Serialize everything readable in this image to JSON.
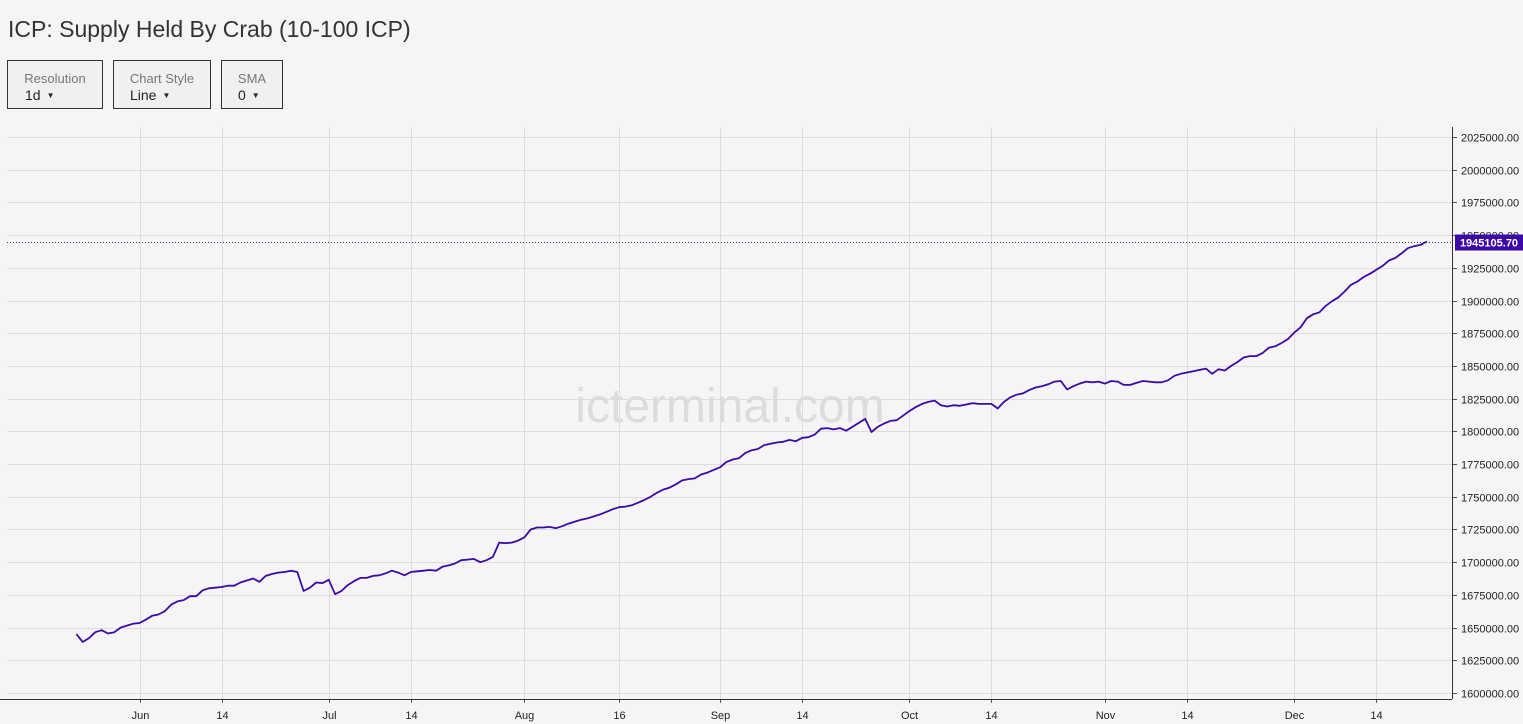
{
  "title": "ICP: Supply Held By Crab (10-100 ICP)",
  "controls": {
    "resolution": {
      "label": "Resolution",
      "value": "1d"
    },
    "chart_style": {
      "label": "Chart Style",
      "value": "Line"
    },
    "sma": {
      "label": "SMA",
      "value": "0"
    }
  },
  "watermark": "icterminal.com",
  "colors": {
    "line": "#3d08a8",
    "price_tag_bg": "#3d08a8",
    "grid": "#dddddd",
    "background": "#f5f5f5"
  },
  "chart_data": {
    "type": "line",
    "title": "ICP: Supply Held By Crab (10-100 ICP)",
    "xlabel": "",
    "ylabel": "",
    "ylim": [
      1595000,
      2030000
    ],
    "y_ticks": [
      1600000,
      1625000,
      1650000,
      1675000,
      1700000,
      1725000,
      1750000,
      1775000,
      1800000,
      1825000,
      1850000,
      1875000,
      1900000,
      1925000,
      1950000,
      1975000,
      2000000,
      2025000
    ],
    "y_tick_labels": [
      "1600000.00",
      "1625000.00",
      "1650000.00",
      "1675000.00",
      "1700000.00",
      "1725000.00",
      "1750000.00",
      "1775000.00",
      "1800000.00",
      "1825000.00",
      "1850000.00",
      "1875000.00",
      "1900000.00",
      "1925000.00",
      "1950000.00",
      "1975000.00",
      "2000000.00",
      "2025000.00"
    ],
    "x_start": "2023-05-11",
    "x_end": "2023-12-26",
    "x_ticks": [
      {
        "date": "2023-06-01",
        "label": "Jun"
      },
      {
        "date": "2023-06-14",
        "label": "14"
      },
      {
        "date": "2023-07-01",
        "label": "Jul"
      },
      {
        "date": "2023-07-14",
        "label": "14"
      },
      {
        "date": "2023-08-01",
        "label": "Aug"
      },
      {
        "date": "2023-08-16",
        "label": "16"
      },
      {
        "date": "2023-09-01",
        "label": "Sep"
      },
      {
        "date": "2023-09-14",
        "label": "14"
      },
      {
        "date": "2023-10-01",
        "label": "Oct"
      },
      {
        "date": "2023-10-14",
        "label": "14"
      },
      {
        "date": "2023-11-01",
        "label": "Nov"
      },
      {
        "date": "2023-11-14",
        "label": "14"
      },
      {
        "date": "2023-12-01",
        "label": "Dec"
      },
      {
        "date": "2023-12-14",
        "label": "14"
      }
    ],
    "grid": true,
    "last_value_label": "1945105.70",
    "series": [
      {
        "points": [
          [
            "2023-05-22",
            1645000
          ],
          [
            "2023-05-23",
            1639000
          ],
          [
            "2023-05-24",
            1642000
          ],
          [
            "2023-05-25",
            1646500
          ],
          [
            "2023-05-26",
            1648000
          ],
          [
            "2023-05-27",
            1645500
          ],
          [
            "2023-05-28",
            1646500
          ],
          [
            "2023-05-29",
            1650000
          ],
          [
            "2023-05-30",
            1651500
          ],
          [
            "2023-05-31",
            1653000
          ],
          [
            "2023-06-01",
            1653500
          ],
          [
            "2023-06-02",
            1656000
          ],
          [
            "2023-06-03",
            1659000
          ],
          [
            "2023-06-04",
            1660000
          ],
          [
            "2023-06-05",
            1662500
          ],
          [
            "2023-06-06",
            1667500
          ],
          [
            "2023-06-07",
            1670000
          ],
          [
            "2023-06-08",
            1671000
          ],
          [
            "2023-06-09",
            1674000
          ],
          [
            "2023-06-10",
            1674000
          ],
          [
            "2023-06-11",
            1678500
          ],
          [
            "2023-06-12",
            1680000
          ],
          [
            "2023-06-13",
            1680500
          ],
          [
            "2023-06-14",
            1681000
          ],
          [
            "2023-06-15",
            1682000
          ],
          [
            "2023-06-16",
            1682000
          ],
          [
            "2023-06-17",
            1684500
          ],
          [
            "2023-06-18",
            1686000
          ],
          [
            "2023-06-19",
            1687500
          ],
          [
            "2023-06-20",
            1685000
          ],
          [
            "2023-06-21",
            1689500
          ],
          [
            "2023-06-22",
            1691000
          ],
          [
            "2023-06-23",
            1692000
          ],
          [
            "2023-06-24",
            1692500
          ],
          [
            "2023-06-25",
            1693500
          ],
          [
            "2023-06-26",
            1692500
          ],
          [
            "2023-06-27",
            1678000
          ],
          [
            "2023-06-28",
            1680500
          ],
          [
            "2023-06-29",
            1684500
          ],
          [
            "2023-06-30",
            1684000
          ],
          [
            "2023-07-01",
            1686500
          ],
          [
            "2023-07-02",
            1675500
          ],
          [
            "2023-07-03",
            1678000
          ],
          [
            "2023-07-04",
            1682500
          ],
          [
            "2023-07-05",
            1685500
          ],
          [
            "2023-07-06",
            1688000
          ],
          [
            "2023-07-07",
            1688000
          ],
          [
            "2023-07-08",
            1689500
          ],
          [
            "2023-07-09",
            1690000
          ],
          [
            "2023-07-10",
            1691500
          ],
          [
            "2023-07-11",
            1693500
          ],
          [
            "2023-07-12",
            1692000
          ],
          [
            "2023-07-13",
            1690000
          ],
          [
            "2023-07-14",
            1692500
          ],
          [
            "2023-07-15",
            1693000
          ],
          [
            "2023-07-16",
            1693500
          ],
          [
            "2023-07-17",
            1694000
          ],
          [
            "2023-07-18",
            1693500
          ],
          [
            "2023-07-19",
            1696500
          ],
          [
            "2023-07-20",
            1697500
          ],
          [
            "2023-07-21",
            1699000
          ],
          [
            "2023-07-22",
            1701500
          ],
          [
            "2023-07-23",
            1702000
          ],
          [
            "2023-07-24",
            1702500
          ],
          [
            "2023-07-25",
            1700000
          ],
          [
            "2023-07-26",
            1701500
          ],
          [
            "2023-07-27",
            1704000
          ],
          [
            "2023-07-28",
            1715000
          ],
          [
            "2023-07-29",
            1714500
          ],
          [
            "2023-07-30",
            1715000
          ],
          [
            "2023-07-31",
            1716500
          ],
          [
            "2023-08-01",
            1719000
          ],
          [
            "2023-08-02",
            1725000
          ],
          [
            "2023-08-03",
            1726500
          ],
          [
            "2023-08-04",
            1726500
          ],
          [
            "2023-08-05",
            1727000
          ],
          [
            "2023-08-06",
            1726000
          ],
          [
            "2023-08-07",
            1727500
          ],
          [
            "2023-08-08",
            1729500
          ],
          [
            "2023-08-09",
            1731000
          ],
          [
            "2023-08-10",
            1732500
          ],
          [
            "2023-08-11",
            1733500
          ],
          [
            "2023-08-12",
            1735000
          ],
          [
            "2023-08-13",
            1736500
          ],
          [
            "2023-08-14",
            1738500
          ],
          [
            "2023-08-15",
            1740500
          ],
          [
            "2023-08-16",
            1742000
          ],
          [
            "2023-08-17",
            1742500
          ],
          [
            "2023-08-18",
            1743500
          ],
          [
            "2023-08-19",
            1745500
          ],
          [
            "2023-08-20",
            1747500
          ],
          [
            "2023-08-21",
            1750000
          ],
          [
            "2023-08-22",
            1753000
          ],
          [
            "2023-08-23",
            1755500
          ],
          [
            "2023-08-24",
            1757000
          ],
          [
            "2023-08-25",
            1759500
          ],
          [
            "2023-08-26",
            1762500
          ],
          [
            "2023-08-27",
            1763500
          ],
          [
            "2023-08-28",
            1764000
          ],
          [
            "2023-08-29",
            1767000
          ],
          [
            "2023-08-30",
            1768500
          ],
          [
            "2023-08-31",
            1770500
          ],
          [
            "2023-09-01",
            1772500
          ],
          [
            "2023-09-02",
            1776500
          ],
          [
            "2023-09-03",
            1778500
          ],
          [
            "2023-09-04",
            1779500
          ],
          [
            "2023-09-05",
            1783500
          ],
          [
            "2023-09-06",
            1785500
          ],
          [
            "2023-09-07",
            1786500
          ],
          [
            "2023-09-08",
            1789500
          ],
          [
            "2023-09-09",
            1790500
          ],
          [
            "2023-09-10",
            1791500
          ],
          [
            "2023-09-11",
            1792000
          ],
          [
            "2023-09-12",
            1793500
          ],
          [
            "2023-09-13",
            1792500
          ],
          [
            "2023-09-14",
            1795000
          ],
          [
            "2023-09-15",
            1795500
          ],
          [
            "2023-09-16",
            1797500
          ],
          [
            "2023-09-17",
            1802000
          ],
          [
            "2023-09-18",
            1802500
          ],
          [
            "2023-09-19",
            1801500
          ],
          [
            "2023-09-20",
            1802500
          ],
          [
            "2023-09-21",
            1800500
          ],
          [
            "2023-09-22",
            1803500
          ],
          [
            "2023-09-23",
            1806500
          ],
          [
            "2023-09-24",
            1809500
          ],
          [
            "2023-09-25",
            1799500
          ],
          [
            "2023-09-26",
            1803500
          ],
          [
            "2023-09-27",
            1806000
          ],
          [
            "2023-09-28",
            1808000
          ],
          [
            "2023-09-29",
            1808500
          ],
          [
            "2023-09-30",
            1812000
          ],
          [
            "2023-10-01",
            1815500
          ],
          [
            "2023-10-02",
            1818500
          ],
          [
            "2023-10-03",
            1821000
          ],
          [
            "2023-10-04",
            1822500
          ],
          [
            "2023-10-05",
            1823500
          ],
          [
            "2023-10-06",
            1820000
          ],
          [
            "2023-10-07",
            1819000
          ],
          [
            "2023-10-08",
            1820000
          ],
          [
            "2023-10-09",
            1819500
          ],
          [
            "2023-10-10",
            1820500
          ],
          [
            "2023-10-11",
            1821500
          ],
          [
            "2023-10-12",
            1821000
          ],
          [
            "2023-10-13",
            1821000
          ],
          [
            "2023-10-14",
            1821000
          ],
          [
            "2023-10-15",
            1817500
          ],
          [
            "2023-10-16",
            1822500
          ],
          [
            "2023-10-17",
            1826000
          ],
          [
            "2023-10-18",
            1828000
          ],
          [
            "2023-10-19",
            1829000
          ],
          [
            "2023-10-20",
            1831500
          ],
          [
            "2023-10-21",
            1833500
          ],
          [
            "2023-10-22",
            1834500
          ],
          [
            "2023-10-23",
            1836000
          ],
          [
            "2023-10-24",
            1838000
          ],
          [
            "2023-10-25",
            1838500
          ],
          [
            "2023-10-26",
            1832000
          ],
          [
            "2023-10-27",
            1834500
          ],
          [
            "2023-10-28",
            1836500
          ],
          [
            "2023-10-29",
            1838000
          ],
          [
            "2023-10-30",
            1837500
          ],
          [
            "2023-10-31",
            1838000
          ],
          [
            "2023-11-01",
            1836500
          ],
          [
            "2023-11-02",
            1838500
          ],
          [
            "2023-11-03",
            1838000
          ],
          [
            "2023-11-04",
            1835500
          ],
          [
            "2023-11-05",
            1835500
          ],
          [
            "2023-11-06",
            1837000
          ],
          [
            "2023-11-07",
            1838500
          ],
          [
            "2023-11-08",
            1838000
          ],
          [
            "2023-11-09",
            1837500
          ],
          [
            "2023-11-10",
            1837500
          ],
          [
            "2023-11-11",
            1839000
          ],
          [
            "2023-11-12",
            1842500
          ],
          [
            "2023-11-13",
            1844000
          ],
          [
            "2023-11-14",
            1845000
          ],
          [
            "2023-11-15",
            1846000
          ],
          [
            "2023-11-16",
            1847000
          ],
          [
            "2023-11-17",
            1848000
          ],
          [
            "2023-11-18",
            1844000
          ],
          [
            "2023-11-19",
            1847500
          ],
          [
            "2023-11-20",
            1846500
          ],
          [
            "2023-11-21",
            1850000
          ],
          [
            "2023-11-22",
            1853000
          ],
          [
            "2023-11-23",
            1856500
          ],
          [
            "2023-11-24",
            1857500
          ],
          [
            "2023-11-25",
            1857500
          ],
          [
            "2023-11-26",
            1860000
          ],
          [
            "2023-11-27",
            1864000
          ],
          [
            "2023-11-28",
            1865000
          ],
          [
            "2023-11-29",
            1867500
          ],
          [
            "2023-11-30",
            1870500
          ],
          [
            "2023-12-01",
            1875500
          ],
          [
            "2023-12-02",
            1879500
          ],
          [
            "2023-12-03",
            1886500
          ],
          [
            "2023-12-04",
            1889500
          ],
          [
            "2023-12-05",
            1891000
          ],
          [
            "2023-12-06",
            1896000
          ],
          [
            "2023-12-07",
            1899500
          ],
          [
            "2023-12-08",
            1902500
          ],
          [
            "2023-12-09",
            1907000
          ],
          [
            "2023-12-10",
            1912000
          ],
          [
            "2023-12-11",
            1914500
          ],
          [
            "2023-12-12",
            1918000
          ],
          [
            "2023-12-13",
            1920500
          ],
          [
            "2023-12-14",
            1923500
          ],
          [
            "2023-12-15",
            1926500
          ],
          [
            "2023-12-16",
            1930500
          ],
          [
            "2023-12-17",
            1932500
          ],
          [
            "2023-12-18",
            1936000
          ],
          [
            "2023-12-19",
            1940000
          ],
          [
            "2023-12-20",
            1941500
          ],
          [
            "2023-12-21",
            1942500
          ],
          [
            "2023-12-22",
            1945105.7
          ]
        ]
      }
    ]
  }
}
